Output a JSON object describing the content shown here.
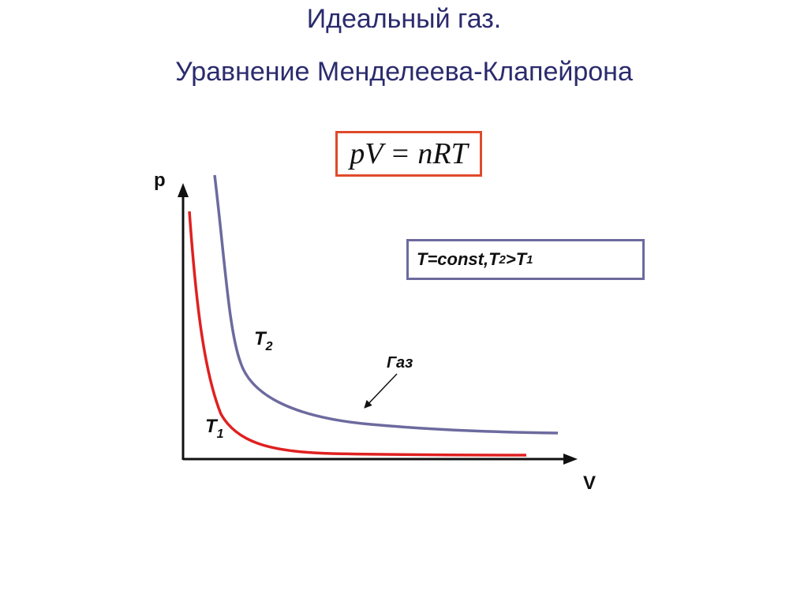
{
  "title_line1": "Идеальный газ.",
  "title_line2": "Уравнение Менделеева-Клапейрона",
  "formula": "pV = nRT",
  "condition": {
    "prefix": "T=const,",
    "t2": "T",
    "t2_sub": "2",
    "gt": ">T",
    "t1_sub": "1"
  },
  "axes": {
    "y_label": "p",
    "x_label": "V"
  },
  "curves": {
    "t2": {
      "label": "T",
      "sub": "2",
      "color": "#6c6a9e"
    },
    "t1": {
      "label": "T",
      "sub": "1",
      "color": "#e02020"
    }
  },
  "annotation": "Газ",
  "colors": {
    "title": "#2b2b6e",
    "formula_border": "#e04a2a",
    "condition_border": "#6c6a9e",
    "axis": "#111111"
  }
}
